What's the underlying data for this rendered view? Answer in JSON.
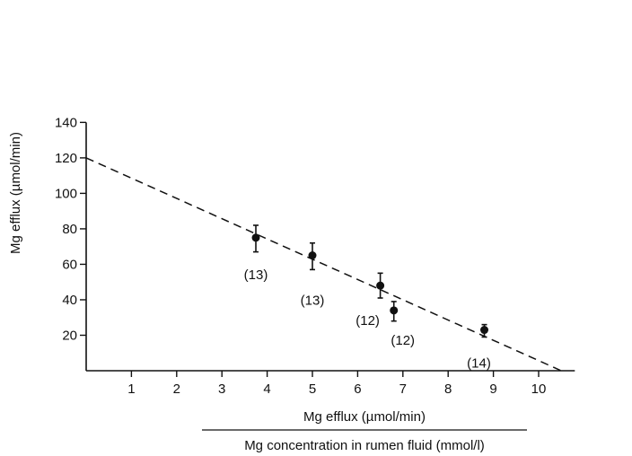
{
  "chart_data": {
    "type": "scatter",
    "title": "",
    "ylabel": "Mg efflux (µmol/min)",
    "xlabel": {
      "numerator": "Mg efflux (µmol/min)",
      "denominator": "Mg concentration in rumen fluid (mmol/l)"
    },
    "xlim": [
      0,
      10.8
    ],
    "ylim": [
      0,
      140
    ],
    "x_ticks": [
      "1",
      "2",
      "3",
      "4",
      "5",
      "6",
      "7",
      "8",
      "9",
      "10"
    ],
    "y_ticks": [
      "20",
      "40",
      "60",
      "80",
      "100",
      "120",
      "140"
    ],
    "grid": false,
    "points": [
      {
        "x": 3.75,
        "y": 75,
        "err_low": 67,
        "err_high": 82,
        "label": "(13)"
      },
      {
        "x": 5.0,
        "y": 65,
        "err_low": 57,
        "err_high": 72,
        "label": "(13)"
      },
      {
        "x": 6.5,
        "y": 48,
        "err_low": 41,
        "err_high": 55,
        "label": "(12)"
      },
      {
        "x": 6.8,
        "y": 34,
        "err_low": 28,
        "err_high": 39,
        "label": "(12)"
      },
      {
        "x": 8.8,
        "y": 23,
        "err_low": 19,
        "err_high": 26,
        "label": "(14)"
      }
    ],
    "fit_line": {
      "style": "dashed",
      "x": [
        0,
        10.5
      ],
      "y": [
        120,
        0
      ]
    }
  }
}
